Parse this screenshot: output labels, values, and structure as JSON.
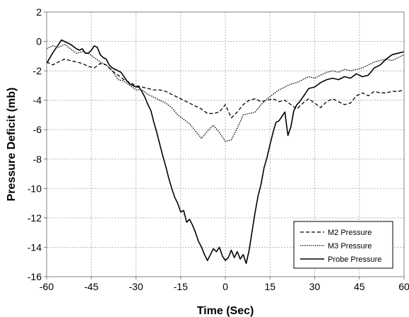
{
  "chart_data": {
    "type": "line",
    "xlabel": "Time (Sec)",
    "ylabel": "Pressure Deficit (mb)",
    "xlim": [
      -60,
      60
    ],
    "ylim": [
      -16,
      2
    ],
    "xticks": [
      -60,
      -45,
      -30,
      -15,
      0,
      15,
      30,
      45,
      60
    ],
    "yticks": [
      2,
      0,
      -2,
      -4,
      -6,
      -8,
      -10,
      -12,
      -14,
      -16
    ],
    "grid": true,
    "legend_position": "bottom-right",
    "series": [
      {
        "name": "M2 Pressure",
        "style": "dashed",
        "color": "#000000",
        "x": [
          -60,
          -58,
          -56,
          -54,
          -52,
          -50,
          -48,
          -46,
          -44,
          -42,
          -40,
          -38,
          -36,
          -34,
          -32,
          -30,
          -28,
          -26,
          -24,
          -22,
          -20,
          -18,
          -16,
          -14,
          -12,
          -10,
          -8,
          -6,
          -4,
          -2,
          0,
          2,
          4,
          6,
          8,
          10,
          12,
          14,
          16,
          18,
          20,
          22,
          24,
          26,
          28,
          30,
          32,
          34,
          36,
          38,
          40,
          42,
          44,
          46,
          48,
          50,
          52,
          54,
          56,
          58,
          60
        ],
        "y": [
          -1.4,
          -1.6,
          -1.4,
          -1.2,
          -1.3,
          -1.4,
          -1.5,
          -1.7,
          -1.8,
          -1.5,
          -1.6,
          -2.0,
          -2.3,
          -2.6,
          -2.8,
          -3.0,
          -3.1,
          -3.2,
          -3.3,
          -3.3,
          -3.4,
          -3.6,
          -3.8,
          -4.0,
          -4.2,
          -4.4,
          -4.6,
          -4.9,
          -4.9,
          -4.8,
          -4.3,
          -5.2,
          -4.8,
          -4.3,
          -4.0,
          -3.9,
          -4.1,
          -4.0,
          -3.9,
          -4.1,
          -4.0,
          -4.3,
          -4.6,
          -4.2,
          -3.9,
          -4.2,
          -4.5,
          -4.1,
          -3.9,
          -4.1,
          -4.3,
          -4.2,
          -3.7,
          -3.5,
          -3.7,
          -3.4,
          -3.5,
          -3.5,
          -3.4,
          -3.4,
          -3.3
        ]
      },
      {
        "name": "M3 Pressure",
        "style": "dotted",
        "color": "#000000",
        "x": [
          -60,
          -58,
          -56,
          -54,
          -52,
          -50,
          -48,
          -46,
          -44,
          -42,
          -40,
          -38,
          -36,
          -34,
          -32,
          -30,
          -28,
          -26,
          -24,
          -22,
          -20,
          -18,
          -16,
          -14,
          -12,
          -10,
          -8,
          -6,
          -4,
          -2,
          0,
          2,
          4,
          6,
          8,
          10,
          12,
          14,
          16,
          18,
          20,
          22,
          24,
          26,
          28,
          30,
          32,
          34,
          36,
          38,
          40,
          42,
          44,
          46,
          48,
          50,
          52,
          54,
          56,
          58,
          60
        ],
        "y": [
          -0.5,
          -0.3,
          -0.4,
          -0.2,
          -0.5,
          -0.8,
          -0.7,
          -0.8,
          -1.1,
          -1.4,
          -1.6,
          -2.0,
          -2.6,
          -2.7,
          -3.0,
          -3.3,
          -3.3,
          -3.6,
          -3.8,
          -4.0,
          -4.2,
          -4.5,
          -5.0,
          -5.3,
          -5.6,
          -6.1,
          -6.6,
          -6.1,
          -5.7,
          -6.2,
          -6.8,
          -6.7,
          -5.9,
          -5.0,
          -4.9,
          -4.8,
          -4.3,
          -3.9,
          -3.6,
          -3.3,
          -3.1,
          -2.9,
          -2.8,
          -2.6,
          -2.4,
          -2.5,
          -2.3,
          -2.1,
          -2.0,
          -2.1,
          -1.9,
          -2.0,
          -1.9,
          -1.8,
          -1.6,
          -1.4,
          -1.3,
          -1.2,
          -1.3,
          -1.1,
          -0.9
        ]
      },
      {
        "name": "Probe Pressure",
        "style": "solid",
        "color": "#000000",
        "x": [
          -60,
          -58,
          -56,
          -55,
          -54,
          -53,
          -52,
          -50,
          -49,
          -48,
          -47,
          -46,
          -45,
          -44,
          -43,
          -42,
          -41,
          -40,
          -39,
          -38,
          -37,
          -36,
          -35,
          -34,
          -33,
          -32,
          -31,
          -30,
          -29,
          -28,
          -27,
          -26,
          -25,
          -24,
          -23,
          -22,
          -21,
          -20,
          -19,
          -18,
          -17,
          -16,
          -15,
          -14,
          -13,
          -12,
          -11,
          -10,
          -9,
          -8,
          -7,
          -6,
          -5,
          -4,
          -3,
          -2,
          -1,
          0,
          1,
          2,
          3,
          4,
          5,
          6,
          7,
          8,
          9,
          10,
          11,
          12,
          13,
          14,
          15,
          16,
          17,
          18,
          19,
          20,
          21,
          22,
          23,
          24,
          25,
          26,
          27,
          28,
          30,
          32,
          34,
          36,
          38,
          40,
          42,
          44,
          46,
          48,
          50,
          52,
          54,
          56,
          58,
          60
        ],
        "y": [
          -1.5,
          -0.8,
          -0.2,
          0.1,
          0.0,
          -0.1,
          -0.2,
          -0.5,
          -0.6,
          -0.5,
          -0.8,
          -0.8,
          -0.6,
          -0.3,
          -0.4,
          -0.9,
          -1.1,
          -1.2,
          -1.6,
          -1.8,
          -1.9,
          -2.0,
          -2.1,
          -2.4,
          -2.7,
          -2.9,
          -3.0,
          -3.1,
          -3.1,
          -3.4,
          -3.8,
          -4.3,
          -4.7,
          -5.5,
          -6.2,
          -7.0,
          -7.8,
          -8.5,
          -9.3,
          -10.0,
          -10.6,
          -11.0,
          -11.6,
          -11.5,
          -12.3,
          -12.1,
          -12.5,
          -13.0,
          -13.6,
          -14.0,
          -14.5,
          -14.9,
          -14.5,
          -14.1,
          -14.3,
          -14.0,
          -14.6,
          -14.9,
          -14.7,
          -14.2,
          -14.7,
          -14.3,
          -14.8,
          -14.5,
          -15.1,
          -14.2,
          -12.9,
          -11.6,
          -10.5,
          -9.7,
          -8.6,
          -7.9,
          -7.0,
          -6.2,
          -5.5,
          -5.4,
          -5.1,
          -4.8,
          -6.4,
          -5.8,
          -4.7,
          -4.3,
          -4.1,
          -3.8,
          -3.5,
          -3.2,
          -3.1,
          -2.8,
          -2.6,
          -2.5,
          -2.6,
          -2.4,
          -2.5,
          -2.2,
          -2.4,
          -2.3,
          -1.8,
          -1.6,
          -1.2,
          -0.9,
          -0.8,
          -0.7
        ]
      }
    ]
  }
}
